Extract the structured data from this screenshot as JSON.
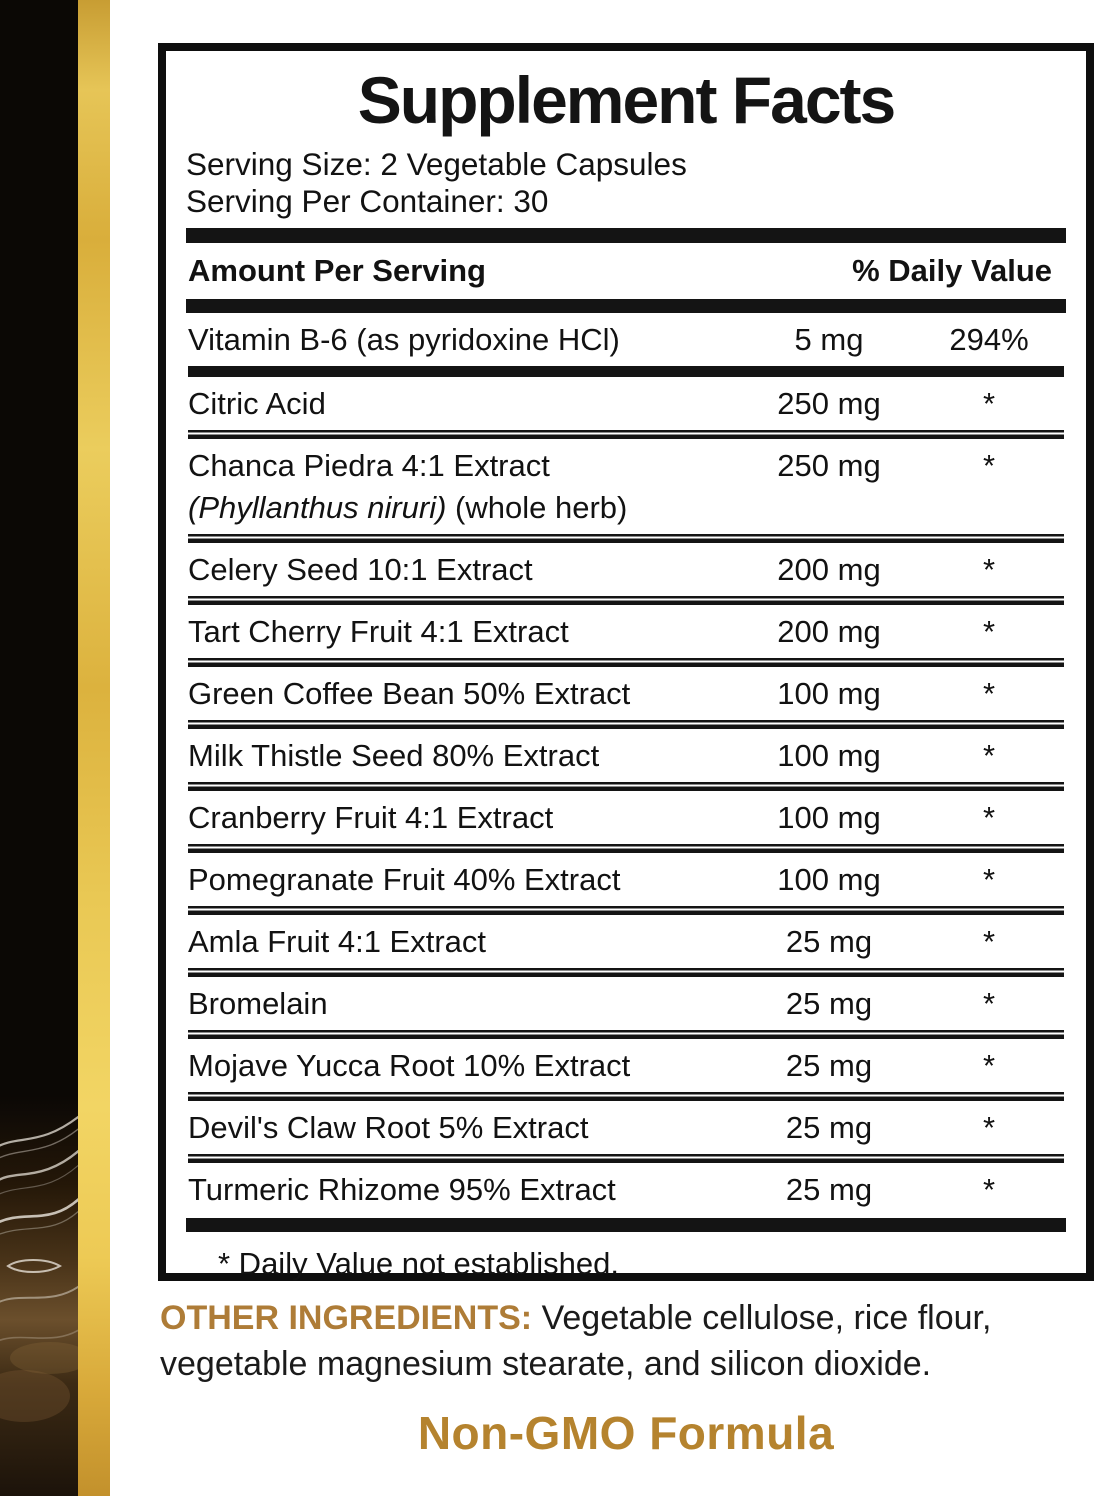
{
  "colors": {
    "accent_gold_text": "#AE7C37",
    "non_gmo_gold": "#B5832E",
    "panel_border": "#0E0E0E",
    "strip_gold": "#E9C854",
    "strip_black": "#0B0805"
  },
  "supplement_facts": {
    "title": "Supplement Facts",
    "serving_size": "Serving Size: 2 Vegetable Capsules",
    "servings_per_container": "Serving Per Container: 30",
    "columns": {
      "amount_per_serving": "Amount Per Serving",
      "daily_value": "% Daily Value"
    },
    "rows": [
      {
        "name": "Vitamin B-6 (as pyridoxine HCl)",
        "amount": "5 mg",
        "dv": "294%",
        "group_end": true
      },
      {
        "name": "Citric Acid",
        "amount": "250 mg",
        "dv": "*"
      },
      {
        "name": "Chanca Piedra 4:1 Extract",
        "sub_italic": "(Phyllanthus niruri)",
        "sub_rest": " (whole herb)",
        "amount": "250 mg",
        "dv": "*"
      },
      {
        "name": "Celery Seed 10:1 Extract",
        "amount": "200 mg",
        "dv": "*"
      },
      {
        "name": "Tart Cherry Fruit 4:1 Extract",
        "amount": "200 mg",
        "dv": "*"
      },
      {
        "name": "Green Coffee Bean 50% Extract",
        "amount": "100 mg",
        "dv": "*"
      },
      {
        "name": "Milk Thistle Seed 80% Extract",
        "amount": "100 mg",
        "dv": "*"
      },
      {
        "name": "Cranberry Fruit 4:1 Extract",
        "amount": "100 mg",
        "dv": "*"
      },
      {
        "name": "Pomegranate Fruit 40% Extract",
        "amount": "100 mg",
        "dv": "*"
      },
      {
        "name": "Amla Fruit 4:1 Extract",
        "amount": "25 mg",
        "dv": "*"
      },
      {
        "name": "Bromelain",
        "amount": "25 mg",
        "dv": "*"
      },
      {
        "name": "Mojave Yucca Root 10% Extract",
        "amount": "25 mg",
        "dv": "*"
      },
      {
        "name": "Devil's Claw Root 5% Extract",
        "amount": "25 mg",
        "dv": "*"
      },
      {
        "name": "Turmeric Rhizome 95% Extract",
        "amount": "25 mg",
        "dv": "*"
      }
    ],
    "footnote": "* Daily Value not established."
  },
  "other_ingredients": {
    "label": "OTHER INGREDIENTS:",
    "text": " Vegetable cellulose, rice flour, vegetable magnesium stearate, and silicon dioxide."
  },
  "non_gmo_text": "Non-GMO Formula"
}
